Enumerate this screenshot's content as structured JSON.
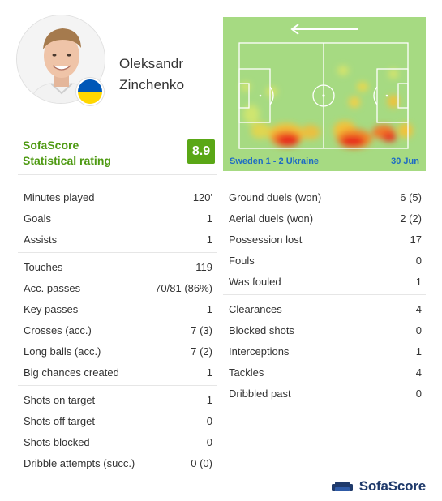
{
  "player": {
    "name_first": "Oleksandr",
    "name_last": "Zinchenko",
    "flag_colors": [
      "#0057b7",
      "#ffd700"
    ]
  },
  "rating": {
    "label_line1": "SofaScore",
    "label_line2": "Statistical rating",
    "value": "8.9",
    "color": "#5aa716"
  },
  "heatmap": {
    "match": "Sweden 1 - 2 Ukraine",
    "date": "30 Jun",
    "direction_icon": "arrow-left-icon"
  },
  "stats_left": [
    [
      {
        "label": "Minutes played",
        "value": "120'"
      },
      {
        "label": "Goals",
        "value": "1"
      },
      {
        "label": "Assists",
        "value": "1"
      }
    ],
    [
      {
        "label": "Touches",
        "value": "119"
      },
      {
        "label": "Acc. passes",
        "value": "70/81 (86%)"
      },
      {
        "label": "Key passes",
        "value": "1"
      },
      {
        "label": "Crosses (acc.)",
        "value": "7 (3)"
      },
      {
        "label": "Long balls (acc.)",
        "value": "7 (2)"
      },
      {
        "label": "Big chances created",
        "value": "1"
      }
    ],
    [
      {
        "label": "Shots on target",
        "value": "1"
      },
      {
        "label": "Shots off target",
        "value": "0"
      },
      {
        "label": "Shots blocked",
        "value": "0"
      },
      {
        "label": "Dribble attempts (succ.)",
        "value": "0 (0)"
      }
    ]
  ],
  "stats_right": [
    [
      {
        "label": "Ground duels (won)",
        "value": "6 (5)"
      },
      {
        "label": "Aerial duels (won)",
        "value": "2 (2)"
      },
      {
        "label": "Possession lost",
        "value": "17"
      },
      {
        "label": "Fouls",
        "value": "0"
      },
      {
        "label": "Was fouled",
        "value": "1"
      }
    ],
    [
      {
        "label": "Clearances",
        "value": "4"
      },
      {
        "label": "Blocked shots",
        "value": "0"
      },
      {
        "label": "Interceptions",
        "value": "1"
      },
      {
        "label": "Tackles",
        "value": "4"
      },
      {
        "label": "Dribbled past",
        "value": "0"
      }
    ]
  ],
  "brand": {
    "name": "SofaScore",
    "icon": "sofa-logo-icon"
  }
}
